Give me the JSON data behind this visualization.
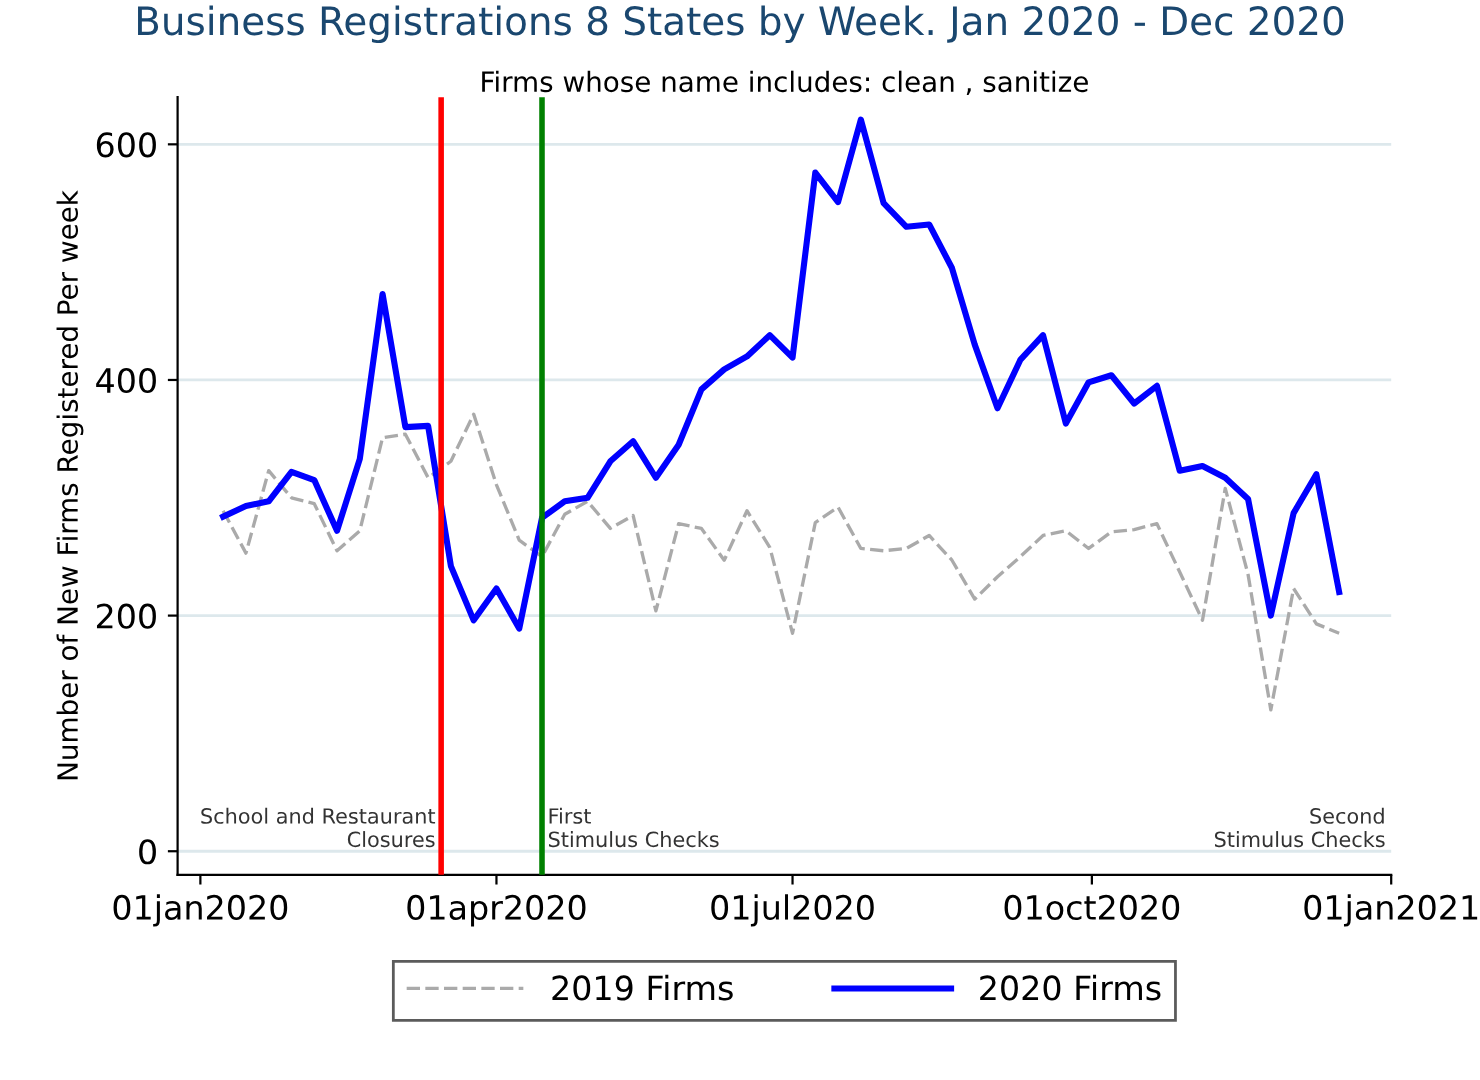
{
  "chart_data": {
    "type": "line",
    "title": "Business Registrations 8 States by Week. Jan 2020 - Dec 2020",
    "subtitle": "Firms whose name includes: clean , sanitize",
    "ylabel": "Number of New Firms Registered Per week",
    "x": [
      "2020-01-08",
      "2020-01-15",
      "2020-01-22",
      "2020-01-29",
      "2020-02-05",
      "2020-02-12",
      "2020-02-19",
      "2020-02-26",
      "2020-03-04",
      "2020-03-11",
      "2020-03-18",
      "2020-03-25",
      "2020-04-01",
      "2020-04-08",
      "2020-04-15",
      "2020-04-22",
      "2020-04-29",
      "2020-05-06",
      "2020-05-13",
      "2020-05-20",
      "2020-05-27",
      "2020-06-03",
      "2020-06-10",
      "2020-06-17",
      "2020-06-24",
      "2020-07-01",
      "2020-07-08",
      "2020-07-15",
      "2020-07-22",
      "2020-07-29",
      "2020-08-05",
      "2020-08-12",
      "2020-08-19",
      "2020-08-26",
      "2020-09-02",
      "2020-09-09",
      "2020-09-16",
      "2020-09-23",
      "2020-09-30",
      "2020-10-07",
      "2020-10-14",
      "2020-10-21",
      "2020-10-28",
      "2020-11-04",
      "2020-11-11",
      "2020-11-18",
      "2020-11-25",
      "2020-12-02",
      "2020-12-09",
      "2020-12-16"
    ],
    "series": [
      {
        "name": "2019 Firms",
        "color": "#aaaaaa",
        "line_style": "dashed",
        "values": [
          289,
          253,
          323,
          300,
          295,
          255,
          272,
          351,
          354,
          317,
          331,
          371,
          311,
          264,
          250,
          286,
          297,
          274,
          285,
          204,
          278,
          274,
          247,
          289,
          258,
          185,
          279,
          292,
          257,
          255,
          257,
          268,
          247,
          214,
          233,
          250,
          268,
          272,
          257,
          271,
          273,
          278,
          237,
          196,
          308,
          235,
          120,
          223,
          193,
          185
        ]
      },
      {
        "name": "2020 Firms",
        "color": "#0000ff",
        "line_style": "solid",
        "values": [
          284,
          293,
          297,
          322,
          315,
          272,
          333,
          473,
          360,
          361,
          242,
          196,
          223,
          189,
          283,
          297,
          300,
          331,
          348,
          317,
          345,
          392,
          409,
          420,
          438,
          419,
          576,
          551,
          621,
          550,
          530,
          532,
          495,
          430,
          376,
          417,
          438,
          363,
          398,
          404,
          380,
          395,
          323,
          327,
          317,
          299,
          200,
          287,
          320,
          220
        ]
      }
    ],
    "xlim": [
      "2019-12-25",
      "2021-01-01"
    ],
    "xticks": [
      {
        "value": "2020-01-01",
        "label": "01jan2020"
      },
      {
        "value": "2020-04-01",
        "label": "01apr2020"
      },
      {
        "value": "2020-07-01",
        "label": "01jul2020"
      },
      {
        "value": "2020-10-01",
        "label": "01oct2020"
      },
      {
        "value": "2021-01-01",
        "label": "01jan2021"
      }
    ],
    "ylim": [
      -20,
      640
    ],
    "yticks": [
      0,
      200,
      400,
      600
    ],
    "ref_lines": [
      {
        "axis": "x",
        "value": "2020-03-15",
        "label": "School and Restaurant\nClosures",
        "color": "#ff0000"
      },
      {
        "axis": "x",
        "value": "2020-04-15",
        "label": "First\nStimulus Checks",
        "color": "#008000"
      }
    ],
    "annotations": [
      "Second\nStimulus Checks"
    ],
    "grid": "y",
    "legend": "bottom",
    "marker": "none"
  }
}
